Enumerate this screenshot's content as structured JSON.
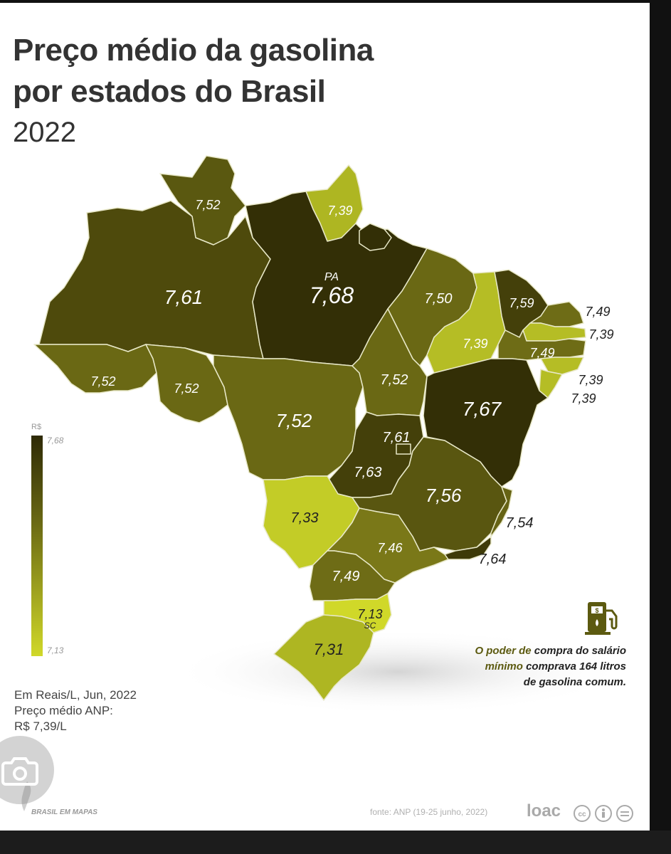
{
  "title": {
    "line1": "Preço médio da gasolina",
    "line2": "por estados do Brasil",
    "year": "2022"
  },
  "legend": {
    "currency": "R$",
    "max": "7,68",
    "min": "7,13",
    "color_max": "#2e2a06",
    "color_min": "#d0d829"
  },
  "states": [
    {
      "code": "RR",
      "price": "7,52"
    },
    {
      "code": "AP",
      "price": "7,39"
    },
    {
      "code": "AM",
      "price": "7,61"
    },
    {
      "code": "PA",
      "price": "7,68",
      "label": "PA"
    },
    {
      "code": "MA",
      "price": "7,50"
    },
    {
      "code": "PI",
      "price": "7,39"
    },
    {
      "code": "CE",
      "price": "7,59"
    },
    {
      "code": "RN",
      "price": "7,49"
    },
    {
      "code": "PB",
      "price": "7,39"
    },
    {
      "code": "PE",
      "price": "7,49"
    },
    {
      "code": "AL",
      "price": "7,39"
    },
    {
      "code": "SE",
      "price": "7,39"
    },
    {
      "code": "AC",
      "price": "7,52"
    },
    {
      "code": "RO",
      "price": "7,52"
    },
    {
      "code": "MT",
      "price": "7,52"
    },
    {
      "code": "TO",
      "price": "7,52"
    },
    {
      "code": "BA",
      "price": "7,67"
    },
    {
      "code": "DF",
      "price": "7,61"
    },
    {
      "code": "GO",
      "price": "7,63"
    },
    {
      "code": "MG",
      "price": "7,56"
    },
    {
      "code": "ES",
      "price": "7,54"
    },
    {
      "code": "RJ",
      "price": "7,64"
    },
    {
      "code": "MS",
      "price": "7,33"
    },
    {
      "code": "SP",
      "price": "7,46"
    },
    {
      "code": "PR",
      "price": "7,49"
    },
    {
      "code": "SC",
      "price": "7,13",
      "label": "SC"
    },
    {
      "code": "RS",
      "price": "7,31"
    }
  ],
  "note": {
    "line1": "Em Reais/L, Jun, 2022",
    "line2": "Preço médio ANP:",
    "line3": "R$ 7,39/L"
  },
  "callout": {
    "part1": "O poder de ",
    "part2": "compra do salário",
    "part3": "mínimo",
    "part4": " comprava 164 litros",
    "part5": "de gasolina comum."
  },
  "footer": {
    "source": "fonte: ANP (19-25 junho, 2022)",
    "brand": "loac",
    "publisher": "BRASIL EM MAPAS"
  },
  "icons": {
    "fuel": "fuel-pump-icon",
    "lens": "google-lens-icon",
    "license": "creative-commons-icon"
  }
}
